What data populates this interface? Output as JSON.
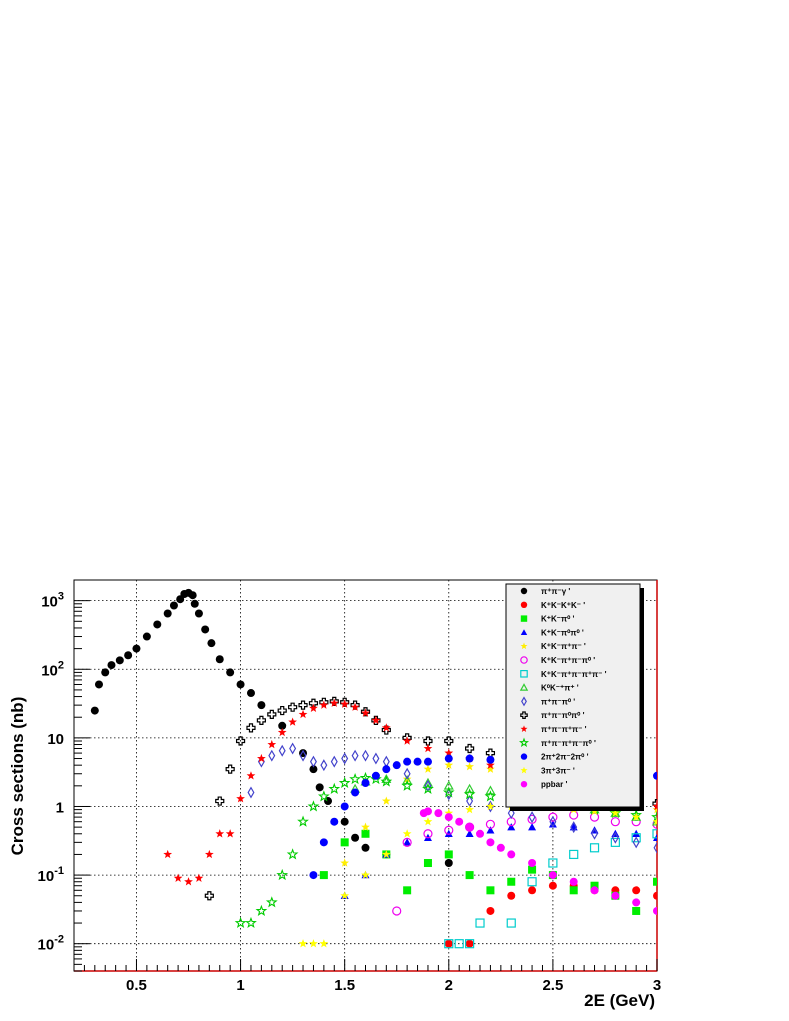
{
  "chart_data": {
    "type": "scatter",
    "title": "",
    "xlabel": "2E (GeV)",
    "ylabel": "Cross sections (nb)",
    "xlim": [
      0.2,
      3.0
    ],
    "ylim": [
      0.004,
      2000
    ],
    "yscale": "log",
    "grid": true,
    "legend_position": "top-right",
    "x_ticks": [
      {
        "value": 0.5,
        "label": "0.5"
      },
      {
        "value": 1.0,
        "label": "1"
      },
      {
        "value": 1.5,
        "label": "1.5"
      },
      {
        "value": 2.0,
        "label": "2"
      },
      {
        "value": 2.5,
        "label": "2.5"
      },
      {
        "value": 3.0,
        "label": "3"
      }
    ],
    "y_ticks": [
      {
        "value": 0.01,
        "base": "10",
        "exp": "-2"
      },
      {
        "value": 0.1,
        "base": "10",
        "exp": "-1"
      },
      {
        "value": 1,
        "base": "1",
        "exp": ""
      },
      {
        "value": 10,
        "base": "10",
        "exp": ""
      },
      {
        "value": 100,
        "base": "10",
        "exp": "2"
      },
      {
        "value": 1000,
        "base": "10",
        "exp": "3"
      }
    ],
    "series": [
      {
        "name": "π⁺π⁻γ '",
        "marker": "dot",
        "color": "#000000",
        "x": [
          0.3,
          0.32,
          0.35,
          0.38,
          0.42,
          0.46,
          0.5,
          0.55,
          0.6,
          0.65,
          0.68,
          0.71,
          0.73,
          0.75,
          0.77,
          0.78,
          0.8,
          0.83,
          0.86,
          0.9,
          0.95,
          1.0,
          1.05,
          1.1,
          1.2,
          1.3,
          1.35,
          1.38,
          1.42,
          1.5,
          1.55,
          1.6,
          1.7,
          2.0,
          2.5
        ],
        "y": [
          25,
          60,
          90,
          115,
          135,
          160,
          200,
          300,
          450,
          650,
          850,
          1050,
          1250,
          1300,
          1200,
          900,
          650,
          380,
          240,
          140,
          90,
          60,
          45,
          30,
          15,
          6,
          3.5,
          1.9,
          1.2,
          0.6,
          0.35,
          0.25,
          0.2,
          0.15,
          0.1
        ]
      },
      {
        "name": "K⁺K⁻K⁺K⁻ '",
        "marker": "dot",
        "color": "#ff0000",
        "x": [
          2.0,
          2.1,
          2.2,
          2.3,
          2.4,
          2.5,
          2.6,
          2.7,
          2.8,
          2.9,
          3.0
        ],
        "y": [
          0.01,
          0.01,
          0.03,
          0.05,
          0.06,
          0.07,
          0.07,
          0.06,
          0.06,
          0.06,
          0.05
        ]
      },
      {
        "name": "K⁺K⁻π⁰ '",
        "marker": "square",
        "color": "#00ee00",
        "x": [
          1.4,
          1.5,
          1.6,
          1.7,
          1.8,
          1.9,
          2.0,
          2.1,
          2.2,
          2.3,
          2.4,
          2.5,
          2.6,
          2.7,
          2.8,
          2.9,
          3.0
        ],
        "y": [
          0.1,
          0.3,
          0.4,
          0.2,
          0.06,
          0.15,
          0.2,
          0.1,
          0.06,
          0.08,
          0.12,
          0.1,
          0.06,
          0.07,
          0.05,
          0.03,
          0.08
        ]
      },
      {
        "name": "K⁺K⁻π⁰π⁰ '",
        "marker": "triangle",
        "color": "#0000ff",
        "x": [
          1.5,
          1.6,
          1.7,
          1.8,
          1.9,
          2.0,
          2.1,
          2.2,
          2.3,
          2.4,
          2.5,
          2.6,
          2.7,
          2.8,
          2.9,
          3.0
        ],
        "y": [
          0.05,
          0.1,
          0.2,
          0.3,
          0.35,
          0.4,
          0.4,
          0.45,
          0.5,
          0.5,
          0.55,
          0.5,
          0.45,
          0.4,
          0.4,
          0.35
        ]
      },
      {
        "name": "K⁺K⁻π⁺π⁻ '",
        "marker": "star",
        "color": "#ffee00",
        "x": [
          1.5,
          1.6,
          1.7,
          1.8,
          1.9,
          2.0,
          2.1,
          2.2,
          2.3,
          2.4,
          2.5,
          2.6,
          2.7,
          2.8,
          2.9,
          3.0
        ],
        "y": [
          0.15,
          0.5,
          1.2,
          2.5,
          3.5,
          4.0,
          3.8,
          3.5,
          3.0,
          2.6,
          2.2,
          1.9,
          1.6,
          1.4,
          1.1,
          0.9
        ]
      },
      {
        "name": "K⁺K⁻π⁺π⁻π⁰ '",
        "marker": "circle-open",
        "color": "#ee00ee",
        "x": [
          1.75,
          1.8,
          1.9,
          2.0,
          2.1,
          2.2,
          2.3,
          2.4,
          2.5,
          2.6,
          2.7,
          2.8,
          2.9,
          3.0
        ],
        "y": [
          0.03,
          0.3,
          0.4,
          0.45,
          0.5,
          0.55,
          0.6,
          0.65,
          0.7,
          0.75,
          0.7,
          0.6,
          0.6,
          0.55
        ]
      },
      {
        "name": "K⁺K⁻π⁺π⁻π⁺π⁻ '",
        "marker": "square-open",
        "color": "#00cccc",
        "x": [
          2.0,
          2.05,
          2.1,
          2.15,
          2.3,
          2.4,
          2.5,
          2.6,
          2.7,
          2.8,
          2.9,
          3.0
        ],
        "y": [
          0.01,
          0.01,
          0.01,
          0.02,
          0.02,
          0.08,
          0.15,
          0.2,
          0.25,
          0.3,
          0.35,
          0.4
        ]
      },
      {
        "name": "K⁰K⁻⁺π⁺ '",
        "marker": "triangle-open",
        "color": "#33cc33",
        "x": [
          1.55,
          1.6,
          1.7,
          1.8,
          1.9,
          2.0,
          2.1,
          2.2,
          2.3,
          2.4,
          2.5,
          2.6,
          2.7,
          2.8,
          2.9,
          3.0
        ],
        "y": [
          1.8,
          2.3,
          2.5,
          2.4,
          2.2,
          2.0,
          1.8,
          1.7,
          1.5,
          1.3,
          1.1,
          1.0,
          0.9,
          0.8,
          0.7,
          0.6
        ]
      },
      {
        "name": "π⁺π⁻π⁰ '",
        "marker": "diamond-open",
        "color": "#4444cc",
        "x": [
          1.05,
          1.1,
          1.15,
          1.2,
          1.25,
          1.3,
          1.35,
          1.4,
          1.45,
          1.5,
          1.55,
          1.6,
          1.65,
          1.7,
          1.8,
          1.9,
          2.0,
          2.1,
          2.2,
          2.3,
          2.4,
          2.5,
          2.6,
          2.7,
          2.8,
          2.9,
          3.0
        ],
        "y": [
          1.6,
          4.5,
          5.5,
          6.5,
          7,
          5.5,
          4.5,
          4,
          4.5,
          5,
          5.5,
          5.5,
          5,
          4.5,
          3,
          2,
          1.5,
          1.2,
          1.0,
          0.8,
          0.7,
          0.6,
          0.5,
          0.4,
          0.35,
          0.3,
          0.25
        ]
      },
      {
        "name": "π⁺π⁻π⁰π⁰ '",
        "marker": "cross-open",
        "color": "#000000",
        "x": [
          0.85,
          0.9,
          0.95,
          1.0,
          1.05,
          1.1,
          1.15,
          1.2,
          1.25,
          1.3,
          1.35,
          1.4,
          1.45,
          1.5,
          1.55,
          1.6,
          1.65,
          1.7,
          1.8,
          1.9,
          2.0,
          2.1,
          2.2,
          2.3,
          2.4,
          2.5,
          2.6,
          2.7,
          2.8,
          2.9,
          3.0
        ],
        "y": [
          0.05,
          1.2,
          3.5,
          9,
          14,
          18,
          22,
          25,
          28,
          30,
          32,
          33,
          34,
          33,
          30,
          24,
          18,
          13,
          10,
          9,
          9,
          7,
          6,
          5,
          4,
          3.5,
          3,
          2.2,
          1.7,
          1.4,
          1.1
        ]
      },
      {
        "name": "π⁺π⁻π⁺π⁻ '",
        "marker": "star",
        "color": "#ff0000",
        "x": [
          0.65,
          0.7,
          0.75,
          0.8,
          0.85,
          0.9,
          0.95,
          1.0,
          1.05,
          1.1,
          1.15,
          1.2,
          1.25,
          1.3,
          1.35,
          1.4,
          1.45,
          1.5,
          1.55,
          1.6,
          1.65,
          1.7,
          1.8,
          1.9,
          2.0,
          2.1,
          2.2,
          2.3,
          2.4,
          2.5,
          2.6,
          2.7,
          2.8,
          2.9,
          3.0
        ],
        "y": [
          0.2,
          0.09,
          0.08,
          0.09,
          0.2,
          0.4,
          0.4,
          1.3,
          2.8,
          5,
          8,
          12,
          17,
          22,
          27,
          30,
          32,
          31,
          28,
          23,
          18,
          14,
          9,
          7,
          6,
          5,
          4,
          3.5,
          3,
          2.5,
          2,
          1.7,
          1.4,
          1.2,
          1.0
        ]
      },
      {
        "name": "π⁺π⁻π⁺π⁻π⁰ '",
        "marker": "star-open",
        "color": "#00cc00",
        "x": [
          1.0,
          1.05,
          1.1,
          1.15,
          1.2,
          1.25,
          1.3,
          1.35,
          1.4,
          1.45,
          1.5,
          1.55,
          1.6,
          1.65,
          1.7,
          1.8,
          1.9,
          2.0,
          2.1,
          2.2,
          2.3,
          2.4,
          2.5,
          2.6,
          2.7,
          2.8,
          2.9,
          3.0
        ],
        "y": [
          0.02,
          0.02,
          0.03,
          0.04,
          0.1,
          0.2,
          0.6,
          1.0,
          1.4,
          1.8,
          2.2,
          2.5,
          2.6,
          2.5,
          2.3,
          2.0,
          1.8,
          1.6,
          1.5,
          1.4,
          1.3,
          1.2,
          1.1,
          1.0,
          0.9,
          0.8,
          0.75,
          0.7
        ]
      },
      {
        "name": "2π⁺2π⁻2π⁰ '",
        "marker": "dot",
        "color": "#0000ff",
        "x": [
          1.35,
          1.4,
          1.45,
          1.5,
          1.55,
          1.6,
          1.65,
          1.7,
          1.75,
          1.8,
          1.85,
          1.9,
          2.0,
          2.1,
          2.2,
          2.3,
          2.4,
          2.5,
          2.6,
          2.7,
          2.8,
          2.9,
          3.0
        ],
        "y": [
          0.1,
          0.3,
          0.6,
          1.0,
          1.6,
          2.2,
          2.8,
          3.5,
          4.0,
          4.5,
          4.5,
          4.5,
          5.0,
          5.0,
          4.8,
          4.5,
          4.2,
          4.0,
          3.8,
          3.6,
          3.3,
          3.0,
          2.8
        ]
      },
      {
        "name": "3π⁺3π⁻ '",
        "marker": "star",
        "color": "#ffff00",
        "x": [
          1.3,
          1.35,
          1.4,
          1.5,
          1.6,
          1.7,
          1.8,
          1.9,
          2.0,
          2.1,
          2.2,
          2.3,
          2.4,
          2.5,
          2.6,
          2.7,
          2.8,
          2.9,
          3.0
        ],
        "y": [
          0.01,
          0.01,
          0.01,
          0.05,
          0.1,
          0.2,
          0.4,
          0.6,
          0.8,
          0.9,
          1.0,
          1.0,
          1.0,
          0.95,
          0.9,
          0.85,
          0.8,
          0.7,
          0.6
        ]
      },
      {
        "name": "ppbar '",
        "marker": "dot",
        "color": "#ff00ff",
        "x": [
          1.88,
          1.9,
          1.95,
          2.0,
          2.05,
          2.1,
          2.15,
          2.2,
          2.25,
          2.3,
          2.4,
          2.5,
          2.6,
          2.7,
          2.8,
          2.9,
          3.0
        ],
        "y": [
          0.8,
          0.85,
          0.8,
          0.7,
          0.6,
          0.5,
          0.4,
          0.3,
          0.25,
          0.2,
          0.15,
          0.1,
          0.08,
          0.06,
          0.05,
          0.04,
          0.03
        ]
      }
    ]
  }
}
